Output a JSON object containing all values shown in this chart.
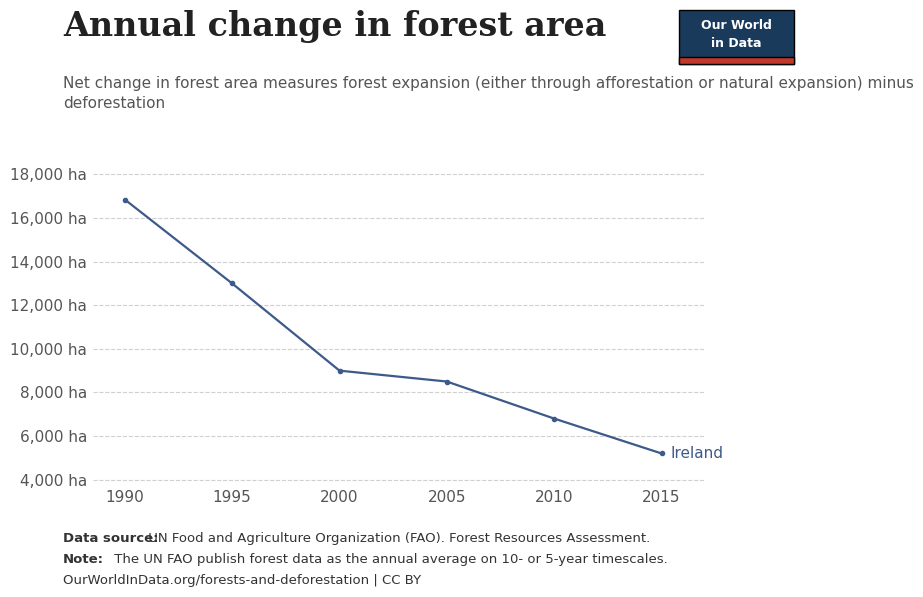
{
  "title": "Annual change in forest area",
  "subtitle": "Net change in forest area measures forest expansion (either through afforestation or natural expansion) minus\ndeforestation",
  "years": [
    1990,
    1995,
    2000,
    2005,
    2010,
    2015
  ],
  "values": [
    16850,
    13000,
    9000,
    8500,
    6800,
    5200
  ],
  "line_color": "#3d5a8a",
  "line_width": 1.6,
  "label": "Ireland",
  "ylim": [
    3800,
    18800
  ],
  "xlim": [
    1988.5,
    2017.0
  ],
  "yticks": [
    4000,
    6000,
    8000,
    10000,
    12000,
    14000,
    16000,
    18000
  ],
  "ytick_labels": [
    "4,000 ha",
    "6,000 ha",
    "8,000 ha",
    "10,000 ha",
    "12,000 ha",
    "14,000 ha",
    "16,000 ha",
    "18,000 ha"
  ],
  "xticks": [
    1990,
    1995,
    2000,
    2005,
    2010,
    2015
  ],
  "background_color": "#ffffff",
  "grid_color": "#d0d0d0",
  "title_fontsize": 24,
  "subtitle_fontsize": 11,
  "tick_fontsize": 11,
  "footer_source_bold": "Data source:",
  "footer_source_rest": " UN Food and Agriculture Organization (FAO). Forest Resources Assessment.",
  "footer_note_bold": "Note:",
  "footer_note_rest": " The UN FAO publish forest data as the annual average on 10- or 5-year timescales.",
  "footer_url": "OurWorldInData.org/forests-and-deforestation | CC BY",
  "owid_box_color": "#1a3a5c",
  "owid_red": "#c0392b"
}
